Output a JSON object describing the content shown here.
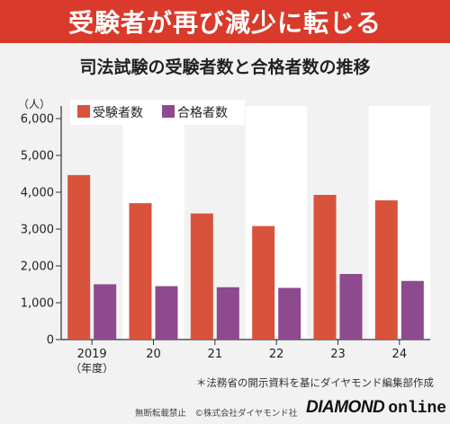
{
  "banner": {
    "title": "受験者が再び減少に転じる"
  },
  "chart_data": {
    "type": "bar",
    "title": "司法試験の受験者数と合格者数の推移",
    "unit_label": "（人）",
    "categories": [
      "2019",
      "20",
      "21",
      "22",
      "23",
      "24"
    ],
    "category_sublabel": "（年度）",
    "series": [
      {
        "name": "受験者数",
        "values": [
          4466,
          3703,
          3424,
          3082,
          3928,
          3779
        ]
      },
      {
        "name": "合格者数",
        "values": [
          1502,
          1450,
          1421,
          1403,
          1781,
          1592
        ]
      }
    ],
    "ylim": [
      0,
      6000
    ],
    "yticks": [
      0,
      1000,
      2000,
      3000,
      4000,
      5000,
      6000
    ],
    "ytick_labels": [
      "0",
      "1,000",
      "2,000",
      "3,000",
      "4,000",
      "5,000",
      "6,000"
    ],
    "legend_position": "top-left",
    "colors": {
      "series1": "#d9533c",
      "series2": "#8e4a8e",
      "band": "#ffffff",
      "background": "#f2f2f2"
    }
  },
  "source_note": "＊法務省の開示資料を基にダイヤモンド編集部作成",
  "footer": {
    "copyright": "無断転載禁止　©株式会社ダイヤモンド社",
    "brand_main": "DIAMOND",
    "brand_sub": "online"
  }
}
